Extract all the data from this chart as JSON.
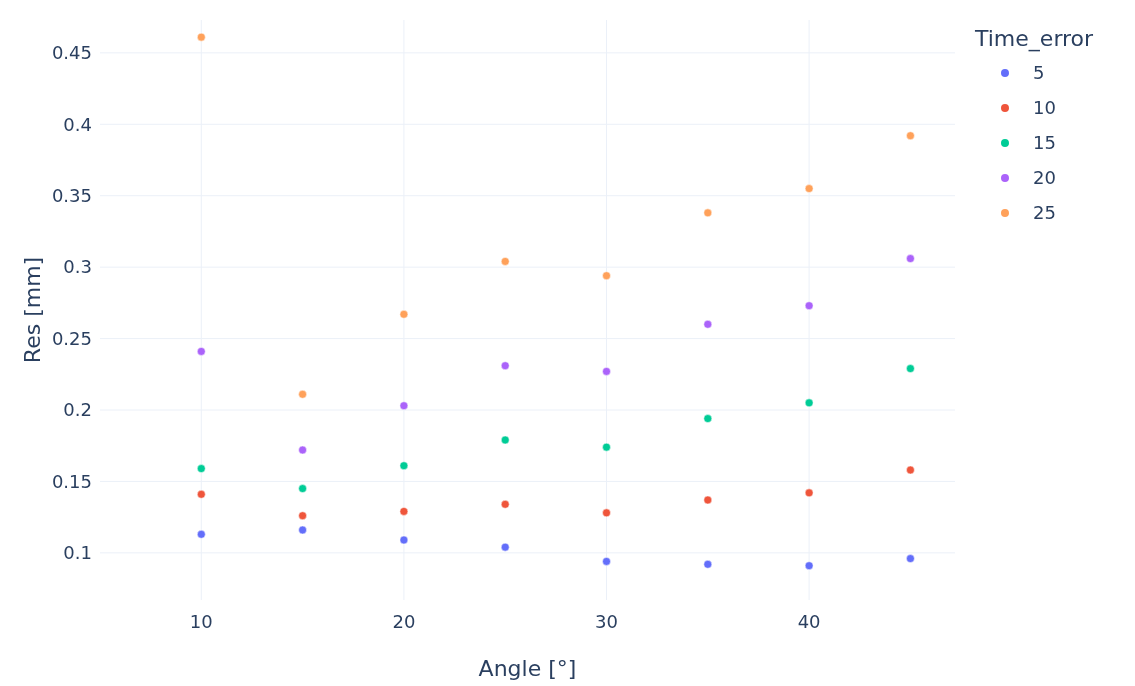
{
  "chart_data": {
    "type": "scatter",
    "xlabel": "Angle [°]",
    "ylabel": "Res [mm]",
    "legend_title": "Time_error",
    "x": [
      10,
      15,
      20,
      25,
      30,
      35,
      40,
      45
    ],
    "series": [
      {
        "name": "5",
        "color": "#636efa",
        "values": [
          0.113,
          0.116,
          0.109,
          0.104,
          0.094,
          0.092,
          0.091,
          0.096
        ]
      },
      {
        "name": "10",
        "color": "#ef553b",
        "values": [
          0.141,
          0.126,
          0.129,
          0.134,
          0.128,
          0.137,
          0.142,
          0.158
        ]
      },
      {
        "name": "15",
        "color": "#00cc96",
        "values": [
          0.159,
          0.145,
          0.161,
          0.179,
          0.174,
          0.194,
          0.205,
          0.229
        ]
      },
      {
        "name": "20",
        "color": "#ab63fa",
        "values": [
          0.241,
          0.172,
          0.203,
          0.231,
          0.227,
          0.26,
          0.273,
          0.306
        ]
      },
      {
        "name": "25",
        "color": "#ffa15a",
        "values": [
          0.461,
          0.211,
          0.267,
          0.304,
          0.294,
          0.338,
          0.355,
          0.392
        ]
      }
    ],
    "xlim": [
      5,
      47.2
    ],
    "ylim": [
      0.067,
      0.473
    ],
    "xticks": [
      10,
      20,
      30,
      40
    ],
    "yticks": [
      0.1,
      0.15,
      0.2,
      0.25,
      0.3,
      0.35,
      0.4,
      0.45
    ],
    "grid": true,
    "legend": "top right",
    "marker": "circle"
  }
}
